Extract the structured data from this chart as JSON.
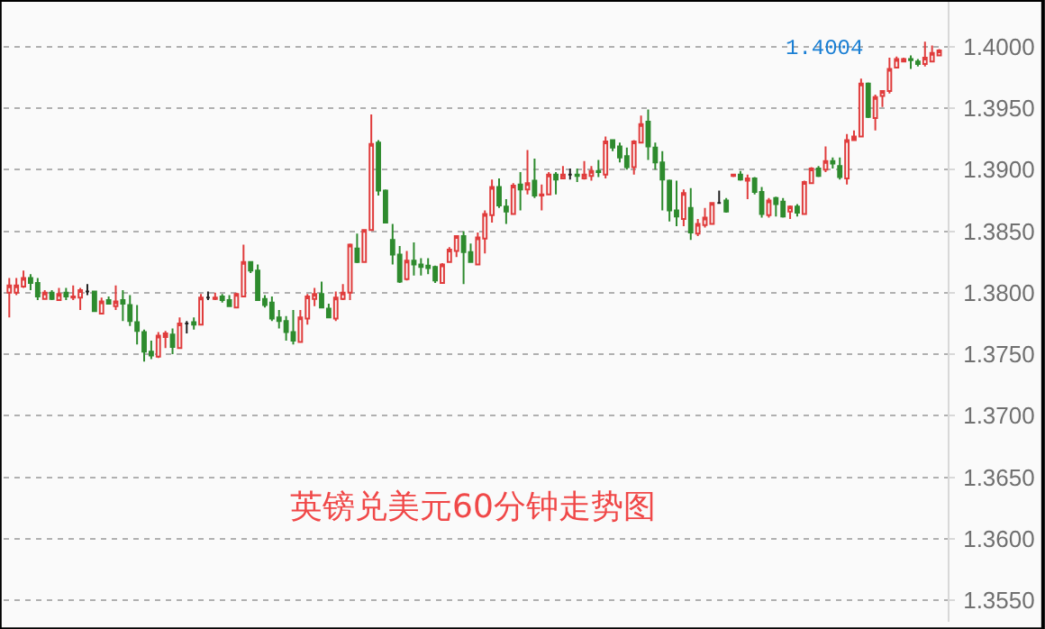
{
  "chart_data": {
    "type": "candlestick",
    "title": "英镑兑美元60分钟走势图",
    "categories": [
      null,
      null,
      null,
      null,
      null,
      null,
      null,
      null,
      null,
      null,
      null,
      null,
      null,
      null,
      null,
      null,
      null,
      null,
      null,
      null,
      null,
      null,
      null,
      null,
      null,
      null,
      null,
      null,
      null,
      null,
      null,
      null,
      null,
      null,
      null,
      null,
      null,
      null,
      null,
      null,
      null,
      null,
      null,
      null,
      null,
      null,
      null,
      null,
      null,
      null,
      null,
      null,
      null,
      null,
      null,
      null,
      null,
      null,
      null,
      null,
      null,
      null,
      null,
      null,
      null,
      null,
      null,
      null,
      null,
      null,
      null,
      null,
      null,
      null,
      null,
      null,
      null,
      null,
      null,
      null,
      null,
      null,
      null,
      null,
      null,
      null,
      null,
      null,
      null,
      null,
      null,
      null,
      null,
      null,
      null,
      null,
      null,
      null,
      null,
      null,
      null,
      null,
      null,
      null,
      null,
      null,
      null,
      null,
      null,
      null,
      null,
      null,
      null,
      null,
      null,
      null,
      null,
      null,
      null,
      null,
      null,
      null,
      null,
      null,
      null,
      null,
      null,
      null,
      null,
      null,
      null,
      null
    ],
    "ohlc": [
      [
        1.38,
        1.3812,
        1.378,
        1.3806
      ],
      [
        1.38,
        1.3812,
        1.3798,
        1.3806
      ],
      [
        1.3805,
        1.3818,
        1.3804,
        1.3812
      ],
      [
        1.3812,
        1.3815,
        1.3802,
        1.3808
      ],
      [
        1.3808,
        1.3812,
        1.3794,
        1.3797
      ],
      [
        1.3795,
        1.3802,
        1.3795,
        1.38
      ],
      [
        1.38,
        1.3802,
        1.3794,
        1.3795
      ],
      [
        1.3794,
        1.3804,
        1.3794,
        1.3799
      ],
      [
        1.38,
        1.3804,
        1.3794,
        1.3797
      ],
      [
        1.3796,
        1.3806,
        1.3794,
        1.3797
      ],
      [
        1.3796,
        1.3804,
        1.3786,
        1.3802
      ],
      [
        1.3801,
        1.3807,
        1.3798,
        1.3801
      ],
      [
        1.3801,
        1.3801,
        1.3785,
        1.3785
      ],
      [
        1.3783,
        1.3796,
        1.3783,
        1.3793
      ],
      [
        1.3794,
        1.3797,
        1.3791,
        1.3791
      ],
      [
        1.3789,
        1.3806,
        1.3786,
        1.3793
      ],
      [
        1.3794,
        1.3802,
        1.3777,
        1.3791
      ],
      [
        1.379,
        1.3798,
        1.3773,
        1.3777
      ],
      [
        1.3776,
        1.379,
        1.3758,
        1.3769
      ],
      [
        1.3768,
        1.377,
        1.3744,
        1.3752
      ],
      [
        1.3752,
        1.3761,
        1.3746,
        1.3749
      ],
      [
        1.3748,
        1.3768,
        1.3747,
        1.3765
      ],
      [
        1.3764,
        1.3769,
        1.3755,
        1.3767
      ],
      [
        1.3766,
        1.3771,
        1.375,
        1.3756
      ],
      [
        1.3755,
        1.378,
        1.3755,
        1.3775
      ],
      [
        1.3775,
        1.3777,
        1.3767,
        1.3775
      ],
      [
        1.3776,
        1.378,
        1.377,
        1.3774
      ],
      [
        1.3774,
        1.3799,
        1.3774,
        1.3796
      ],
      [
        1.3796,
        1.3801,
        1.3794,
        1.3796
      ],
      [
        1.3795,
        1.38,
        1.3794,
        1.3796
      ],
      [
        1.3797,
        1.3799,
        1.3792,
        1.3794
      ],
      [
        1.3794,
        1.3798,
        1.3789,
        1.3789
      ],
      [
        1.3788,
        1.38,
        1.3788,
        1.3799
      ],
      [
        1.3797,
        1.3839,
        1.3797,
        1.3825
      ],
      [
        1.3825,
        1.3825,
        1.3816,
        1.3818
      ],
      [
        1.3818,
        1.3823,
        1.3794,
        1.3794
      ],
      [
        1.3795,
        1.3798,
        1.3788,
        1.379
      ],
      [
        1.3792,
        1.3797,
        1.3777,
        1.3779
      ],
      [
        1.378,
        1.3786,
        1.3771,
        1.3777
      ],
      [
        1.3777,
        1.3781,
        1.3761,
        1.3768
      ],
      [
        1.3768,
        1.3786,
        1.3758,
        1.3761
      ],
      [
        1.376,
        1.3786,
        1.376,
        1.378
      ],
      [
        1.3779,
        1.3799,
        1.3774,
        1.3797
      ],
      [
        1.3795,
        1.3804,
        1.3789,
        1.3799
      ],
      [
        1.3799,
        1.3809,
        1.3788,
        1.3788
      ],
      [
        1.3787,
        1.3791,
        1.378,
        1.378
      ],
      [
        1.3779,
        1.3801,
        1.3777,
        1.3796
      ],
      [
        1.3795,
        1.3807,
        1.3794,
        1.38
      ],
      [
        1.38,
        1.384,
        1.3794,
        1.3839
      ],
      [
        1.3836,
        1.3848,
        1.3824,
        1.3825
      ],
      [
        1.3825,
        1.3851,
        1.3825,
        1.3851
      ],
      [
        1.3851,
        1.3945,
        1.3851,
        1.3921
      ],
      [
        1.3922,
        1.3924,
        1.3879,
        1.3883
      ],
      [
        1.3883,
        1.3884,
        1.3857,
        1.3857
      ],
      [
        1.3843,
        1.3856,
        1.3823,
        1.3831
      ],
      [
        1.3831,
        1.3838,
        1.3808,
        1.3809
      ],
      [
        1.3811,
        1.3834,
        1.381,
        1.3826
      ],
      [
        1.3826,
        1.3841,
        1.3814,
        1.3823
      ],
      [
        1.3823,
        1.3828,
        1.3814,
        1.3821
      ],
      [
        1.3822,
        1.3828,
        1.3815,
        1.382
      ],
      [
        1.3821,
        1.3822,
        1.3808,
        1.381
      ],
      [
        1.3808,
        1.3824,
        1.3808,
        1.3823
      ],
      [
        1.3825,
        1.3837,
        1.3825,
        1.3835
      ],
      [
        1.3834,
        1.3846,
        1.3829,
        1.3846
      ],
      [
        1.3846,
        1.385,
        1.3807,
        1.3833
      ],
      [
        1.3833,
        1.384,
        1.3825,
        1.3825
      ],
      [
        1.3823,
        1.3849,
        1.3823,
        1.3845
      ],
      [
        1.3844,
        1.3867,
        1.3832,
        1.3864
      ],
      [
        1.3863,
        1.3892,
        1.3857,
        1.3886
      ],
      [
        1.3886,
        1.3893,
        1.3869,
        1.3871
      ],
      [
        1.387,
        1.3876,
        1.3856,
        1.3866
      ],
      [
        1.3864,
        1.3889,
        1.3864,
        1.3887
      ],
      [
        1.3888,
        1.3898,
        1.3867,
        1.3884
      ],
      [
        1.3884,
        1.3916,
        1.388,
        1.3889
      ],
      [
        1.3891,
        1.3909,
        1.3877,
        1.3879
      ],
      [
        1.3879,
        1.3888,
        1.3867,
        1.388
      ],
      [
        1.388,
        1.3898,
        1.388,
        1.3896
      ],
      [
        1.3896,
        1.3898,
        1.388,
        1.3892
      ],
      [
        1.3893,
        1.3903,
        1.3893,
        1.3896
      ],
      [
        1.3896,
        1.3901,
        1.3892,
        1.3896
      ],
      [
        1.3896,
        1.3901,
        1.389,
        1.3895
      ],
      [
        1.3893,
        1.3907,
        1.3892,
        1.3896
      ],
      [
        1.3895,
        1.3903,
        1.3891,
        1.3899
      ],
      [
        1.3899,
        1.3908,
        1.3894,
        1.3898
      ],
      [
        1.3896,
        1.3927,
        1.3893,
        1.3923
      ],
      [
        1.3924,
        1.3924,
        1.3915,
        1.3918
      ],
      [
        1.3919,
        1.3922,
        1.3906,
        1.391
      ],
      [
        1.3911,
        1.3918,
        1.39,
        1.3902
      ],
      [
        1.3902,
        1.3924,
        1.3896,
        1.3923
      ],
      [
        1.3922,
        1.3944,
        1.3922,
        1.3937
      ],
      [
        1.3939,
        1.3949,
        1.3908,
        1.3919
      ],
      [
        1.3918,
        1.3922,
        1.39,
        1.3906
      ],
      [
        1.3906,
        1.3915,
        1.3867,
        1.3892
      ],
      [
        1.3891,
        1.3892,
        1.3858,
        1.3867
      ],
      [
        1.3867,
        1.3891,
        1.3854,
        1.3862
      ],
      [
        1.386,
        1.3884,
        1.3854,
        1.3881
      ],
      [
        1.3869,
        1.3885,
        1.3843,
        1.3849
      ],
      [
        1.3848,
        1.386,
        1.3846,
        1.3856
      ],
      [
        1.3855,
        1.3869,
        1.3853,
        1.3861
      ],
      [
        1.3856,
        1.3873,
        1.3856,
        1.3873
      ],
      [
        1.3873,
        1.3883,
        1.3873,
        1.3873
      ],
      [
        1.3875,
        1.3877,
        1.3865,
        1.3866
      ],
      [
        1.3895,
        1.3896,
        1.3894,
        1.3896
      ],
      [
        1.3896,
        1.3899,
        1.3891,
        1.3892
      ],
      [
        1.3891,
        1.3896,
        1.3876,
        1.3893
      ],
      [
        1.3893,
        1.3894,
        1.388,
        1.3882
      ],
      [
        1.3882,
        1.3886,
        1.3861,
        1.3864
      ],
      [
        1.3863,
        1.3877,
        1.3861,
        1.3875
      ],
      [
        1.3877,
        1.3878,
        1.3862,
        1.3872
      ],
      [
        1.3874,
        1.3877,
        1.3861,
        1.3862
      ],
      [
        1.3866,
        1.3871,
        1.386,
        1.387
      ],
      [
        1.387,
        1.3872,
        1.3862,
        1.3865
      ],
      [
        1.3864,
        1.3891,
        1.3864,
        1.389
      ],
      [
        1.3889,
        1.3902,
        1.3889,
        1.3901
      ],
      [
        1.3901,
        1.3903,
        1.3894,
        1.3895
      ],
      [
        1.39,
        1.3919,
        1.3898,
        1.3907
      ],
      [
        1.3907,
        1.391,
        1.3901,
        1.3905
      ],
      [
        1.3903,
        1.391,
        1.3892,
        1.3894
      ],
      [
        1.3893,
        1.3929,
        1.3888,
        1.3924
      ],
      [
        1.3924,
        1.3932,
        1.3924,
        1.3927
      ],
      [
        1.3927,
        1.3974,
        1.3927,
        1.397
      ],
      [
        1.397,
        1.3971,
        1.3942,
        1.3943
      ],
      [
        1.3942,
        1.3961,
        1.3932,
        1.3959
      ],
      [
        1.396,
        1.3964,
        1.3951,
        1.3964
      ],
      [
        1.3964,
        1.3991,
        1.3962,
        1.3982
      ],
      [
        1.3983,
        1.3992,
        1.3983,
        1.399
      ],
      [
        1.3988,
        1.3991,
        1.3988,
        1.399
      ],
      [
        1.399,
        1.3993,
        1.3982,
        1.3989
      ],
      [
        1.3988,
        1.399,
        1.3984,
        1.3986
      ],
      [
        1.3986,
        1.4004,
        1.3984,
        1.3991
      ],
      [
        1.3988,
        1.4001,
        1.3988,
        1.3995
      ],
      [
        1.3993,
        1.3998,
        1.3993,
        1.3997
      ]
    ],
    "colors": [
      "#e03c3c",
      "#e03c3c",
      "#e03c3c",
      "#2e8b2e",
      "#2e8b2e",
      "#e03c3c",
      "#2e8b2e",
      "#e03c3c",
      "#2e8b2e",
      "#e03c3c",
      "#e03c3c",
      "#222222",
      "#2e8b2e",
      "#e03c3c",
      "#2e8b2e",
      "#e03c3c",
      "#2e8b2e",
      "#2e8b2e",
      "#2e8b2e",
      "#2e8b2e",
      "#2e8b2e",
      "#e03c3c",
      "#e03c3c",
      "#2e8b2e",
      "#e03c3c",
      "#222222",
      "#2e8b2e",
      "#e03c3c",
      "#222222",
      "#e03c3c",
      "#2e8b2e",
      "#2e8b2e",
      "#e03c3c",
      "#e03c3c",
      "#2e8b2e",
      "#2e8b2e",
      "#2e8b2e",
      "#2e8b2e",
      "#2e8b2e",
      "#2e8b2e",
      "#2e8b2e",
      "#e03c3c",
      "#e03c3c",
      "#e03c3c",
      "#2e8b2e",
      "#2e8b2e",
      "#e03c3c",
      "#e03c3c",
      "#e03c3c",
      "#2e8b2e",
      "#e03c3c",
      "#e03c3c",
      "#2e8b2e",
      "#2e8b2e",
      "#2e8b2e",
      "#2e8b2e",
      "#e03c3c",
      "#2e8b2e",
      "#2e8b2e",
      "#2e8b2e",
      "#2e8b2e",
      "#e03c3c",
      "#e03c3c",
      "#e03c3c",
      "#2e8b2e",
      "#2e8b2e",
      "#e03c3c",
      "#e03c3c",
      "#e03c3c",
      "#2e8b2e",
      "#2e8b2e",
      "#e03c3c",
      "#2e8b2e",
      "#e03c3c",
      "#2e8b2e",
      "#e03c3c",
      "#e03c3c",
      "#2e8b2e",
      "#e03c3c",
      "#222222",
      "#2e8b2e",
      "#e03c3c",
      "#e03c3c",
      "#2e8b2e",
      "#e03c3c",
      "#2e8b2e",
      "#2e8b2e",
      "#2e8b2e",
      "#e03c3c",
      "#e03c3c",
      "#2e8b2e",
      "#2e8b2e",
      "#2e8b2e",
      "#2e8b2e",
      "#2e8b2e",
      "#e03c3c",
      "#2e8b2e",
      "#e03c3c",
      "#e03c3c",
      "#e03c3c",
      "#222222",
      "#2e8b2e",
      "#e03c3c",
      "#2e8b2e",
      "#e03c3c",
      "#2e8b2e",
      "#2e8b2e",
      "#e03c3c",
      "#2e8b2e",
      "#2e8b2e",
      "#e03c3c",
      "#2e8b2e",
      "#e03c3c",
      "#e03c3c",
      "#2e8b2e",
      "#e03c3c",
      "#2e8b2e",
      "#2e8b2e",
      "#e03c3c",
      "#e03c3c",
      "#e03c3c",
      "#2e8b2e",
      "#e03c3c",
      "#e03c3c",
      "#e03c3c",
      "#e03c3c",
      "#e03c3c",
      "#2e8b2e",
      "#2e8b2e",
      "#e03c3c",
      "#e03c3c",
      "#e03c3c"
    ],
    "ylim": [
      1.35325,
      1.40365
    ],
    "yticks": [
      {
        "value": 1.355,
        "label": "1.3550"
      },
      {
        "value": 1.36,
        "label": "1.3600"
      },
      {
        "value": 1.365,
        "label": "1.3650"
      },
      {
        "value": 1.37,
        "label": "1.3700"
      },
      {
        "value": 1.375,
        "label": "1.3750"
      },
      {
        "value": 1.38,
        "label": "1.3800"
      },
      {
        "value": 1.385,
        "label": "1.3850"
      },
      {
        "value": 1.39,
        "label": "1.3900"
      },
      {
        "value": 1.395,
        "label": "1.3950"
      },
      {
        "value": 1.4,
        "label": "1.4000"
      }
    ],
    "grid": "y",
    "tick_labels": "y",
    "annotations": [
      "1.4004"
    ]
  }
}
